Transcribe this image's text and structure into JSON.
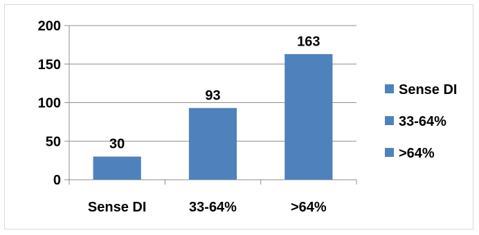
{
  "chart_data": {
    "type": "bar",
    "categories": [
      "Sense DI",
      "33-64%",
      ">64%"
    ],
    "values": [
      30,
      93,
      163
    ],
    "data_labels": [
      "30",
      "93",
      "163"
    ],
    "title": "",
    "xlabel": "",
    "ylabel": "",
    "ylim": [
      0,
      200
    ],
    "yticks": [
      0,
      50,
      100,
      150,
      200
    ],
    "ytick_labels": [
      "0",
      "50",
      "100",
      "150",
      "200"
    ],
    "grid": true,
    "legend_position": "right",
    "legend": [
      "Sense DI",
      "33-64%",
      ">64%"
    ],
    "color": "#4f81bd"
  }
}
